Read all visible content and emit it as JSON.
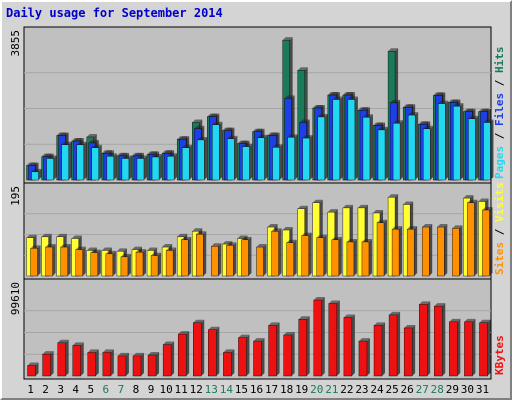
{
  "colors": {
    "frame_bg": "#d4d4d4",
    "plot_bg": "#c0c0c0",
    "title": "#0000cc",
    "hits": "#1a7a5a",
    "files": "#1e3ee8",
    "pages": "#22d8f0",
    "visits": "#ffff33",
    "sites": "#ff9000",
    "kbytes": "#ee1111",
    "weekend": "#1a7a5a",
    "weekday": "#000000",
    "slash": "#000000"
  },
  "chart_data": {
    "type": "bar",
    "title": "Daily usage for September 2014",
    "days": [
      "1",
      "2",
      "3",
      "4",
      "5",
      "6",
      "7",
      "8",
      "9",
      "10",
      "11",
      "12",
      "13",
      "14",
      "15",
      "16",
      "17",
      "18",
      "19",
      "20",
      "21",
      "22",
      "23",
      "24",
      "25",
      "26",
      "27",
      "28",
      "29",
      "30",
      "31"
    ],
    "weekend_days": [
      "6",
      "7",
      "13",
      "14",
      "20",
      "21",
      "27",
      "28"
    ],
    "panels": [
      {
        "id": "top",
        "ymax_label": "3855",
        "ymax": 3855,
        "series": [
          {
            "name": "Hits",
            "values": [
              390,
              630,
              1200,
              1050,
              1160,
              720,
              650,
              650,
              690,
              720,
              1100,
              1550,
              1710,
              1330,
              980,
              1300,
              1200,
              3770,
              2960,
              1940,
              2290,
              2290,
              1880,
              1470,
              3470,
              1960,
              1500,
              2280,
              2090,
              1840,
              1840
            ]
          },
          {
            "name": "Files",
            "values": [
              390,
              630,
              1200,
              1050,
              1000,
              720,
              650,
              650,
              690,
              720,
              1100,
              1380,
              1710,
              1330,
              980,
              1300,
              1200,
              2200,
              1550,
              1940,
              2290,
              2290,
              1880,
              1470,
              2080,
              1960,
              1500,
              2280,
              2090,
              1840,
              1840
            ]
          },
          {
            "name": "Pages",
            "values": [
              220,
              580,
              950,
              950,
              870,
              640,
              580,
              580,
              620,
              640,
              870,
              1080,
              1490,
              1110,
              900,
              1140,
              880,
              1150,
              1130,
              1700,
              2170,
              2170,
              1690,
              1350,
              1530,
              1750,
              1380,
              2060,
              1990,
              1650,
              1550
            ]
          }
        ],
        "right_label": [
          "Pages",
          "Files",
          "Hits"
        ]
      },
      {
        "id": "middle",
        "ymax_label": "195",
        "ymax": 195,
        "series": [
          {
            "name": "Visits",
            "values": [
              90,
              92,
              92,
              88,
              60,
              60,
              58,
              62,
              60,
              68,
              92,
              105,
              0,
              75,
              88,
              0,
              115,
              108,
              158,
              172,
              150,
              160,
              160,
              148,
              185,
              168,
              0,
              0,
              0,
              183,
              175
            ]
          },
          {
            "name": "Sites",
            "values": [
              65,
              68,
              68,
              62,
              55,
              52,
              45,
              56,
              48,
              60,
              85,
              98,
              70,
              72,
              85,
              68,
              105,
              78,
              95,
              90,
              85,
              80,
              80,
              125,
              110,
              110,
              115,
              115,
              112,
              172,
              155
            ]
          }
        ],
        "right_label": [
          "Sites",
          "Visits"
        ]
      },
      {
        "id": "bottom",
        "ymax_label": "99610",
        "ymax": 99610,
        "series": [
          {
            "name": "KBytes",
            "values": [
              12000,
              25000,
              38000,
              35000,
              27000,
              27000,
              23000,
              23000,
              24000,
              36000,
              48000,
              61000,
              53000,
              27000,
              44000,
              40000,
              58000,
              47000,
              65000,
              87000,
              83000,
              67000,
              40000,
              58000,
              70000,
              55000,
              82000,
              80000,
              62000,
              62000,
              61000
            ]
          }
        ],
        "right_label": [
          "KBytes"
        ]
      }
    ]
  }
}
